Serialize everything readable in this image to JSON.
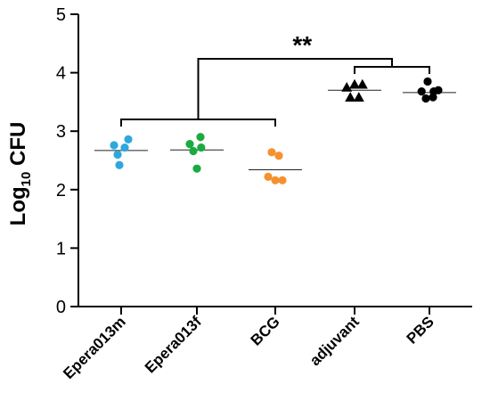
{
  "chart_data": {
    "type": "scatter",
    "title": "",
    "ylabel": "Log",
    "ylabel_sub": "10",
    "ylabel_tail": " CFU",
    "ylim": [
      0,
      5
    ],
    "yticks": [
      "0",
      "1",
      "2",
      "3",
      "4",
      "5"
    ],
    "categories": [
      "Epera013m",
      "Epera013f",
      "BCG",
      "adjuvant",
      "PBS"
    ],
    "series": [
      {
        "color": "#2ea8dc",
        "marker": "circle",
        "points": [
          [
            -0.2,
            2.76
          ],
          [
            0.2,
            2.86
          ],
          [
            -0.1,
            2.6
          ],
          [
            0.1,
            2.72
          ],
          [
            -0.05,
            2.42
          ]
        ],
        "mean": 2.67
      },
      {
        "color": "#1aab3e",
        "marker": "circle",
        "points": [
          [
            -0.2,
            2.78
          ],
          [
            0.1,
            2.9
          ],
          [
            -0.1,
            2.66
          ],
          [
            0.12,
            2.72
          ],
          [
            0.0,
            2.36
          ]
        ],
        "mean": 2.68
      },
      {
        "color": "#f5912e",
        "marker": "circle",
        "points": [
          [
            -0.1,
            2.64
          ],
          [
            0.1,
            2.58
          ],
          [
            -0.2,
            2.22
          ],
          [
            0.0,
            2.16
          ],
          [
            0.2,
            2.16
          ]
        ],
        "mean": 2.34
      },
      {
        "color": "#000000",
        "marker": "triangle",
        "points": [
          [
            -0.22,
            3.75
          ],
          [
            0.0,
            3.8
          ],
          [
            0.22,
            3.8
          ],
          [
            -0.12,
            3.58
          ],
          [
            0.12,
            3.58
          ]
        ],
        "mean": 3.7
      },
      {
        "color": "#000000",
        "marker": "circle",
        "points": [
          [
            -0.05,
            3.85
          ],
          [
            -0.22,
            3.68
          ],
          [
            0.12,
            3.68
          ],
          [
            0.25,
            3.7
          ],
          [
            -0.1,
            3.56
          ],
          [
            0.1,
            3.58
          ]
        ],
        "mean": 3.66
      }
    ],
    "brackets": {
      "treated_groups": [
        0,
        2
      ],
      "control_groups": [
        3,
        4
      ],
      "significance": "**"
    }
  }
}
